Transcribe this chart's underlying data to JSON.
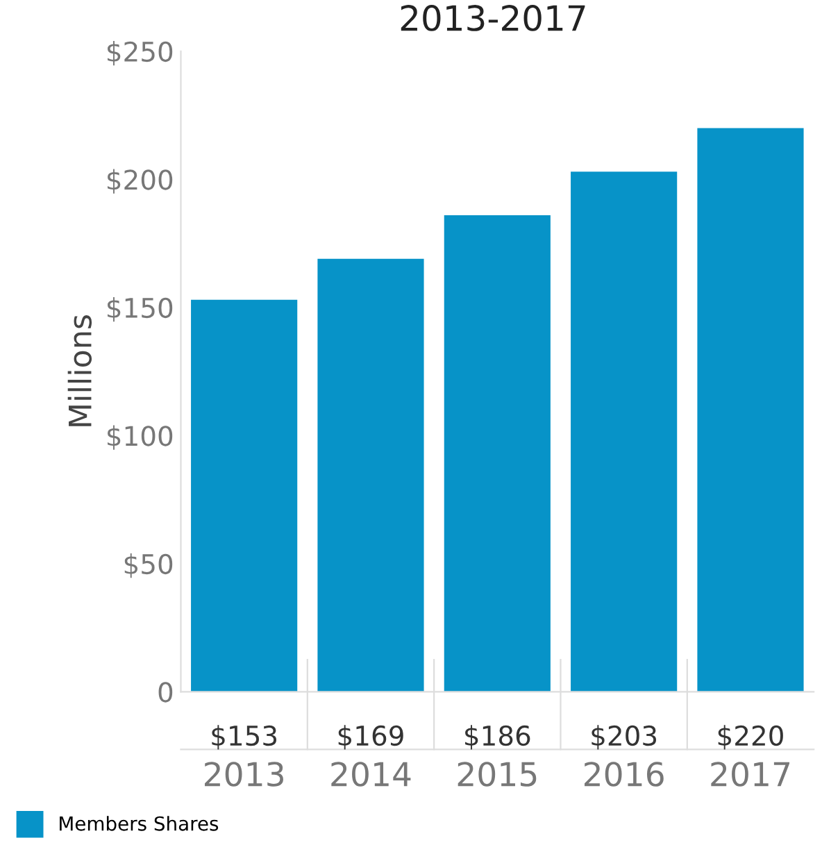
{
  "chart_data": {
    "type": "bar",
    "title": "2013-2017",
    "ylabel": "Millions",
    "categories": [
      "2013",
      "2014",
      "2015",
      "2016",
      "2017"
    ],
    "series": [
      {
        "name": "Members Shares",
        "color": "#0793c8",
        "values": [
          153,
          169,
          186,
          203,
          220
        ]
      }
    ],
    "ylim": [
      0,
      250
    ],
    "yticks": [
      {
        "value": 0,
        "label": "0"
      },
      {
        "value": 50,
        "label": "$50"
      },
      {
        "value": 100,
        "label": "$100"
      },
      {
        "value": 150,
        "label": "$150"
      },
      {
        "value": 200,
        "label": "$200"
      },
      {
        "value": 250,
        "label": "$250"
      }
    ],
    "value_labels": [
      "$153",
      "$169",
      "$186",
      "$203",
      "$220"
    ],
    "legend": "bottom left",
    "grid": false
  }
}
